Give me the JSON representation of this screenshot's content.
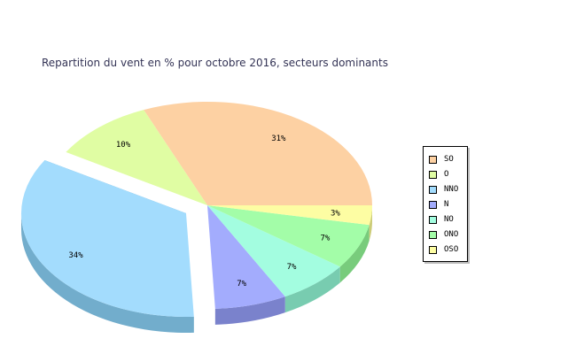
{
  "chart_data": {
    "type": "pie",
    "title": "Repartition du vent en % pour octobre 2016, secteurs dominants",
    "slices": [
      {
        "name": "SO",
        "value": 31,
        "label": "31%",
        "color": "#fdd1a3",
        "side": "#c9a27a"
      },
      {
        "name": "O",
        "value": 10,
        "label": "10%",
        "color": "#e0fda3",
        "side": "#b5cc78"
      },
      {
        "name": "NNO",
        "value": 34,
        "label": "34%",
        "color": "#a3dcfd",
        "side": "#72adcc",
        "exploded": true
      },
      {
        "name": "N",
        "value": 7,
        "label": "7%",
        "color": "#a3acfd",
        "side": "#7a82cc"
      },
      {
        "name": "NO",
        "value": 7,
        "label": "7%",
        "color": "#a3fde0",
        "side": "#78ccb0"
      },
      {
        "name": "ONO",
        "value": 7,
        "label": "7%",
        "color": "#a3fda8",
        "side": "#78cc7c"
      },
      {
        "name": "OSO",
        "value": 3,
        "label": "3%",
        "color": "#fdfda3",
        "side": "#cccc78"
      }
    ],
    "legend_position": "right",
    "style": "3d"
  }
}
